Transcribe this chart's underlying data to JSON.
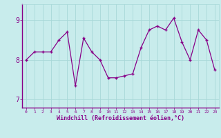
{
  "x": [
    0,
    1,
    2,
    3,
    4,
    5,
    6,
    7,
    8,
    9,
    10,
    11,
    12,
    13,
    14,
    15,
    16,
    17,
    18,
    19,
    20,
    21,
    22,
    23
  ],
  "y": [
    8.0,
    8.2,
    8.2,
    8.2,
    8.5,
    8.7,
    7.35,
    8.55,
    8.2,
    8.0,
    7.55,
    7.55,
    7.6,
    7.65,
    8.3,
    8.75,
    8.85,
    8.75,
    9.05,
    8.45,
    8.0,
    8.75,
    8.5,
    7.75
  ],
  "line_color": "#880088",
  "marker": "+",
  "bg_color": "#c8ecec",
  "grid_color": "#a8d8d8",
  "xlabel": "Windchill (Refroidissement éolien,°C)",
  "xlabel_color": "#880088",
  "tick_color": "#880088",
  "spine_color": "#880088",
  "ylim": [
    6.8,
    9.4
  ],
  "yticks": [
    7,
    8,
    9
  ],
  "xlim": [
    -0.5,
    23.5
  ]
}
